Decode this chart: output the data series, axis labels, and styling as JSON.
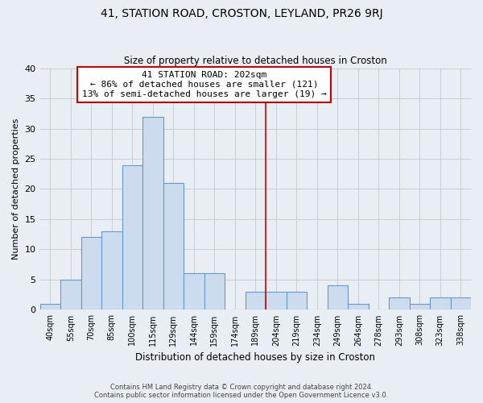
{
  "title": "41, STATION ROAD, CROSTON, LEYLAND, PR26 9RJ",
  "subtitle": "Size of property relative to detached houses in Croston",
  "xlabel": "Distribution of detached houses by size in Croston",
  "ylabel": "Number of detached properties",
  "categories": [
    "40sqm",
    "55sqm",
    "70sqm",
    "85sqm",
    "100sqm",
    "115sqm",
    "129sqm",
    "144sqm",
    "159sqm",
    "174sqm",
    "189sqm",
    "204sqm",
    "219sqm",
    "234sqm",
    "249sqm",
    "264sqm",
    "278sqm",
    "293sqm",
    "308sqm",
    "323sqm",
    "338sqm"
  ],
  "values": [
    1,
    5,
    12,
    13,
    24,
    32,
    21,
    6,
    6,
    0,
    3,
    3,
    3,
    0,
    4,
    1,
    0,
    2,
    1,
    2,
    2
  ],
  "bar_color": "#ccdcee",
  "bar_edge_color": "#6699cc",
  "vline_x": 10.5,
  "vline_color": "#cc0000",
  "annotation_text": "41 STATION ROAD: 202sqm\n← 86% of detached houses are smaller (121)\n13% of semi-detached houses are larger (19) →",
  "annotation_box_color": "#ffffff",
  "annotation_box_edge_color": "#cc0000",
  "ylim": [
    0,
    40
  ],
  "yticks": [
    0,
    5,
    10,
    15,
    20,
    25,
    30,
    35,
    40
  ],
  "grid_color": "#cccccc",
  "bg_color": "#e8eef4",
  "footer_line1": "Contains HM Land Registry data © Crown copyright and database right 2024.",
  "footer_line2": "Contains public sector information licensed under the Open Government Licence v3.0."
}
